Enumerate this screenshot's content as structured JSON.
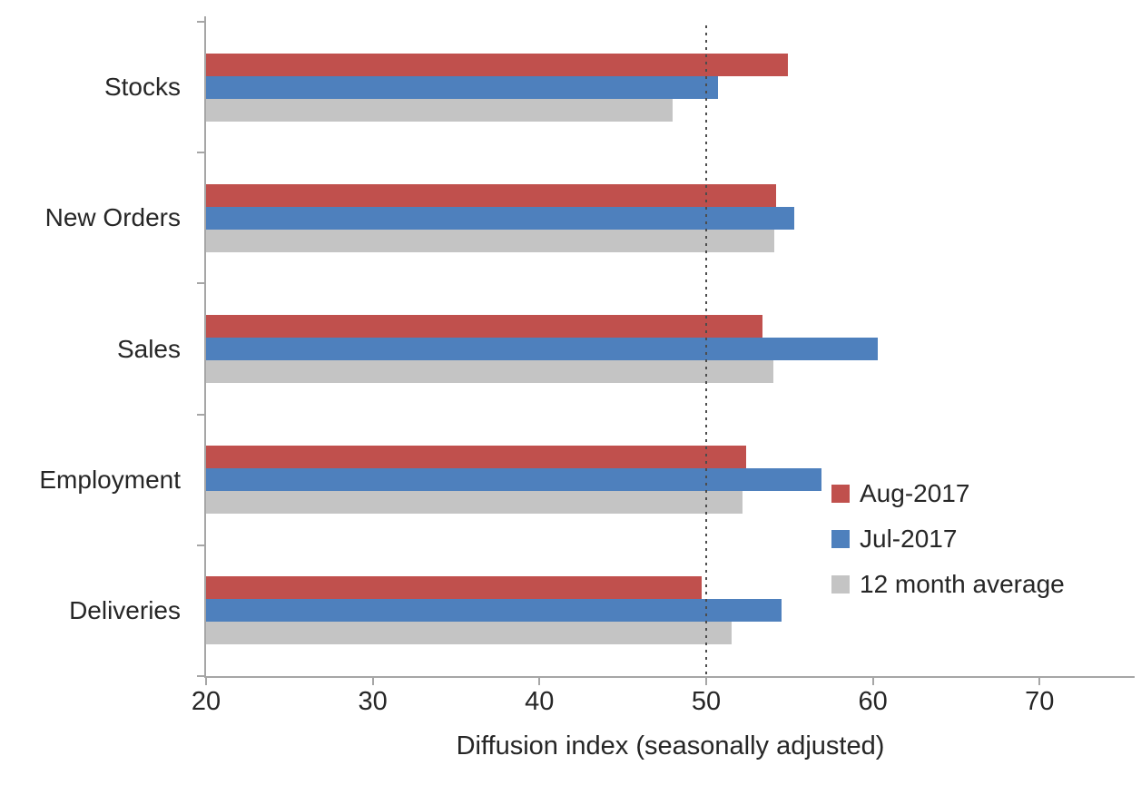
{
  "chart_data": {
    "type": "bar",
    "orientation": "horizontal",
    "title": "",
    "xlabel": "Diffusion index (seasonally adjusted)",
    "ylabel": "",
    "categories": [
      "Stocks",
      "New Orders",
      "Sales",
      "Employment",
      "Deliveries"
    ],
    "series": [
      {
        "name": "Aug-2017",
        "color": "#c0504d",
        "values": [
          54.9,
          54.2,
          53.4,
          52.4,
          49.7
        ]
      },
      {
        "name": "Jul-2017",
        "color": "#4e80bd",
        "values": [
          50.7,
          55.3,
          60.3,
          56.9,
          54.5
        ]
      },
      {
        "name": "12 month average",
        "color": "#c4c4c4",
        "values": [
          48.0,
          54.1,
          54.0,
          52.2,
          51.5
        ]
      }
    ],
    "x_ticks": [
      20,
      30,
      40,
      50,
      60,
      70
    ],
    "xlim": [
      20,
      75.7
    ],
    "reference_line": {
      "value": 50,
      "style": "dotted",
      "color": "#4d4d4d"
    },
    "legend_position": "inside-right",
    "grid": false,
    "axis_color": "#a6a6a6",
    "text_color": "#262626"
  }
}
